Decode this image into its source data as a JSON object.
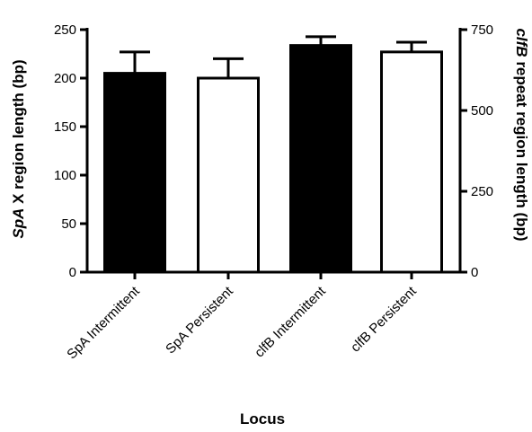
{
  "chart_data": {
    "type": "bar",
    "categories": [
      "SpA Intermittent",
      "SpA Persistent",
      "clfB Intermittent",
      "clfB Persistent"
    ],
    "bar_fill": [
      "#000000",
      "#ffffff",
      "#000000",
      "#ffffff"
    ],
    "left_axis": {
      "title_italic": "SpA",
      "title_rest": " X region length (bp)",
      "ylim": [
        0,
        250
      ],
      "ticks": [
        0,
        50,
        100,
        150,
        200,
        250
      ]
    },
    "right_axis": {
      "title_italic": "clfB",
      "title_rest": " repeat region length (bp)",
      "ylim": [
        0,
        750
      ],
      "ticks": [
        0,
        250,
        500,
        750
      ]
    },
    "xlabel": "Locus",
    "bars": [
      {
        "axis": "left",
        "value": 205,
        "error": 22
      },
      {
        "axis": "left",
        "value": 200,
        "error": 20
      },
      {
        "axis": "right",
        "value": 701,
        "error": 27
      },
      {
        "axis": "right",
        "value": 681,
        "error": 30
      }
    ],
    "grid": false,
    "legend": "none"
  }
}
